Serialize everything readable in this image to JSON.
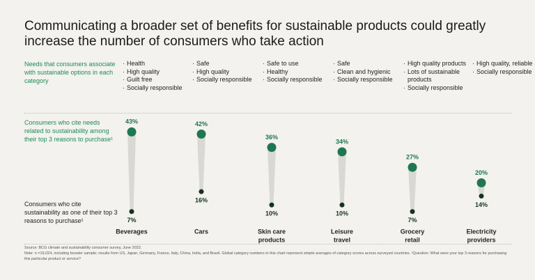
{
  "chart_data": {
    "type": "dumbbell",
    "title": "Communicating a broader set of benefits for sustainable products could greatly increase the number of consumers who take action",
    "needs_label": "Needs that consumers associate with sustainable options in each category",
    "needs": [
      [
        "Health",
        "High quality",
        "Guilt free",
        "Socially responsible"
      ],
      [
        "Safe",
        "High quality",
        "Socially responsible"
      ],
      [
        "Safe to use",
        "Healthy",
        "Socially responsible"
      ],
      [
        "Safe",
        "Clean and hygienic",
        "Socially responsible"
      ],
      [
        "High quality products",
        "Lots of sustainable products",
        "Socially responsible"
      ],
      [
        "High quality, reliable",
        "Socially responsible"
      ]
    ],
    "categories": [
      [
        "Beverages"
      ],
      [
        "Cars"
      ],
      [
        "Skin care",
        "products"
      ],
      [
        "Leisure",
        "travel"
      ],
      [
        "Grocery",
        "retail"
      ],
      [
        "Electricity",
        "providers"
      ]
    ],
    "series": [
      {
        "name": "Consumers who cite needs related to sustainability among their top 3 reasons to purchase¹",
        "color": "#1e7752",
        "values": [
          43,
          42,
          36,
          34,
          27,
          20
        ],
        "value_labels": [
          "43%",
          "42%",
          "36%",
          "34%",
          "27%",
          "20%"
        ]
      },
      {
        "name": "Consumers who cite sustainability as one of their top 3 reasons to purchase¹",
        "color": "#17331f",
        "values": [
          7,
          16,
          10,
          10,
          7,
          14
        ],
        "value_labels": [
          "7%",
          "16%",
          "10%",
          "10%",
          "7%",
          "14%"
        ]
      }
    ],
    "ylim": [
      0,
      45
    ],
    "source": "Source: BCG climate and sustainability consumer survey, June 2022.",
    "note": "Note: n =19,024, including booster sample; results from US, Japan, Germany, France, Italy, China, India, and Brazil. Global category numbers in this chart represent simple averages of category scores across surveyed countries. ¹Question: What were your top 3 reasons for purchasing this particular product or service?"
  }
}
